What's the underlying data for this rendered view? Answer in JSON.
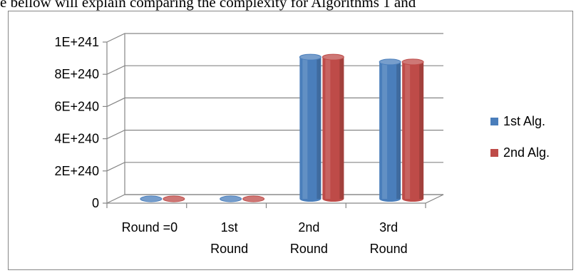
{
  "caption": "e bellow will explain comparing the complexity for Algorithms 1 and",
  "chart_data": {
    "type": "bar",
    "style": "3d-cylinder",
    "categories": [
      [
        "Round =0"
      ],
      [
        "1st",
        "Round"
      ],
      [
        "2nd",
        "Round"
      ],
      [
        "3rd",
        "Round"
      ]
    ],
    "series": [
      {
        "name": "1st Alg.",
        "color": "#4a7ebb",
        "values": [
          0,
          0,
          8.8e+240,
          8.5e+240
        ]
      },
      {
        "name": "2nd Alg.",
        "color": "#be4b48",
        "values": [
          0,
          0,
          8.8e+240,
          8.5e+240
        ]
      }
    ],
    "ylim": [
      0,
      1e+241
    ],
    "ytick_labels": [
      "0",
      "2E+240",
      "4E+240",
      "6E+240",
      "8E+240",
      "1E+241"
    ],
    "grid": true,
    "legend_position": "right"
  }
}
